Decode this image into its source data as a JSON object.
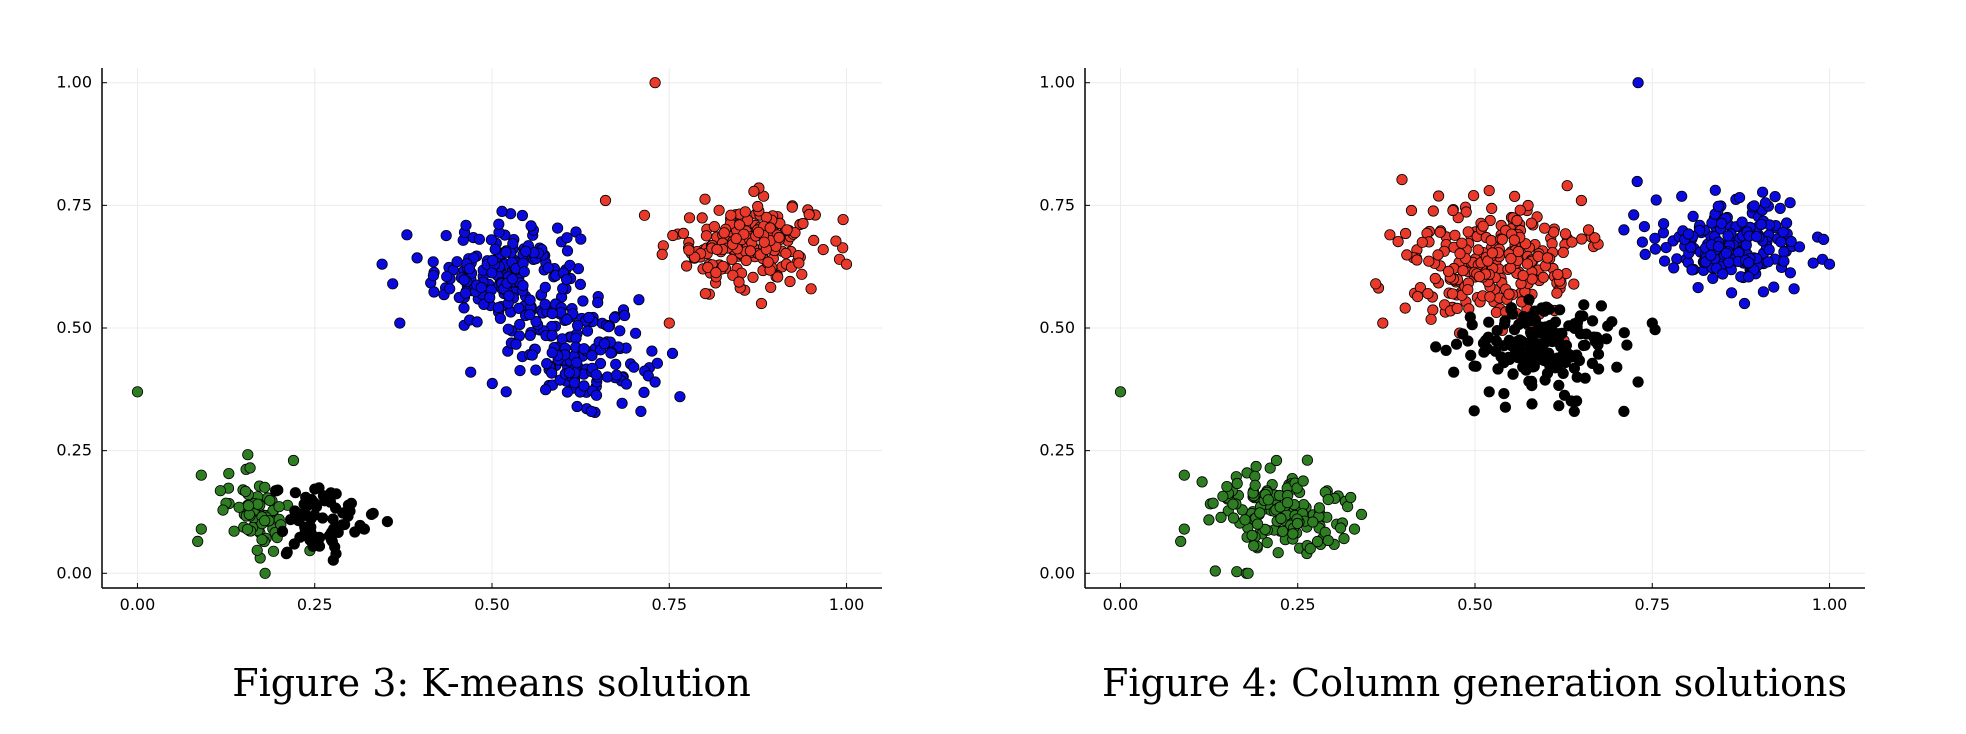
{
  "figures": [
    {
      "caption": "Figure 3: K-means solution"
    },
    {
      "caption": "Figure 4: Column generation solutions"
    }
  ],
  "colors": {
    "red": "#e8392a",
    "blue": "#0a0adf",
    "black": "#000000",
    "green": "#2f7d23"
  },
  "chart_data": [
    {
      "type": "scatter",
      "title": "",
      "xlabel": "",
      "ylabel": "",
      "xlim": [
        -0.05,
        1.05
      ],
      "ylim": [
        -0.03,
        1.03
      ],
      "xticks": [
        "0.00",
        "0.25",
        "0.50",
        "0.75",
        "1.00"
      ],
      "yticks": [
        "0.00",
        "0.25",
        "0.50",
        "0.75",
        "1.00"
      ],
      "grid": true,
      "legend": "none",
      "series": [
        {
          "color": "blue",
          "clusters": [
            {
              "center": [
                0.52,
                0.61
              ],
              "spread": [
                0.05,
                0.055
              ],
              "count": 200
            },
            {
              "center": [
                0.63,
                0.45
              ],
              "spread": [
                0.045,
                0.05
              ],
              "count": 150
            }
          ],
          "points": [
            [
              0.37,
              0.51
            ],
            [
              0.36,
              0.59
            ],
            [
              0.38,
              0.69
            ],
            [
              0.47,
              0.41
            ],
            [
              0.52,
              0.37
            ],
            [
              0.71,
              0.33
            ],
            [
              0.73,
              0.39
            ],
            [
              0.7,
              0.42
            ],
            [
              0.64,
              0.33
            ],
            [
              0.62,
              0.34
            ]
          ]
        },
        {
          "color": "red",
          "clusters": [
            {
              "center": [
                0.86,
                0.67
              ],
              "spread": [
                0.05,
                0.045
              ],
              "count": 190
            }
          ],
          "points": [
            [
              0.73,
              1.0
            ],
            [
              0.75,
              0.51
            ],
            [
              0.74,
              0.65
            ],
            [
              0.66,
              0.76
            ],
            [
              0.99,
              0.64
            ],
            [
              1.0,
              0.63
            ],
            [
              0.95,
              0.58
            ],
            [
              0.88,
              0.55
            ]
          ]
        },
        {
          "color": "green",
          "clusters": [
            {
              "center": [
                0.17,
                0.13
              ],
              "spread": [
                0.025,
                0.04
              ],
              "count": 70
            }
          ],
          "points": [
            [
              0.0,
              0.37
            ],
            [
              0.18,
              0.0
            ],
            [
              0.09,
              0.2
            ],
            [
              0.09,
              0.09
            ],
            [
              0.085,
              0.065
            ],
            [
              0.22,
              0.23
            ]
          ]
        },
        {
          "color": "black",
          "clusters": [
            {
              "center": [
                0.26,
                0.11
              ],
              "spread": [
                0.035,
                0.04
              ],
              "count": 70
            }
          ],
          "points": [
            [
              0.33,
              0.12
            ],
            [
              0.32,
              0.09
            ],
            [
              0.28,
              0.04
            ],
            [
              0.21,
              0.04
            ]
          ]
        }
      ]
    },
    {
      "type": "scatter",
      "title": "",
      "xlabel": "",
      "ylabel": "",
      "xlim": [
        -0.05,
        1.05
      ],
      "ylim": [
        -0.03,
        1.03
      ],
      "xticks": [
        "0.00",
        "0.25",
        "0.50",
        "0.75",
        "1.00"
      ],
      "yticks": [
        "0.00",
        "0.25",
        "0.50",
        "0.75",
        "1.00"
      ],
      "grid": true,
      "legend": "none",
      "series": [
        {
          "color": "red",
          "clusters": [
            {
              "center": [
                0.53,
                0.63
              ],
              "spread": [
                0.06,
                0.06
              ],
              "count": 260
            }
          ],
          "points": [
            [
              0.37,
              0.51
            ],
            [
              0.36,
              0.59
            ],
            [
              0.38,
              0.69
            ],
            [
              0.65,
              0.76
            ],
            [
              0.66,
              0.7
            ],
            [
              0.52,
              0.78
            ],
            [
              0.63,
              0.79
            ]
          ]
        },
        {
          "color": "black",
          "clusters": [
            {
              "center": [
                0.59,
                0.46
              ],
              "spread": [
                0.05,
                0.045
              ],
              "count": 170
            }
          ],
          "points": [
            [
              0.47,
              0.41
            ],
            [
              0.52,
              0.37
            ],
            [
              0.71,
              0.33
            ],
            [
              0.73,
              0.39
            ],
            [
              0.7,
              0.42
            ],
            [
              0.64,
              0.33
            ],
            [
              0.75,
              0.51
            ]
          ]
        },
        {
          "color": "blue",
          "clusters": [
            {
              "center": [
                0.86,
                0.67
              ],
              "spread": [
                0.05,
                0.045
              ],
              "count": 190
            }
          ],
          "points": [
            [
              0.73,
              1.0
            ],
            [
              0.74,
              0.65
            ],
            [
              0.71,
              0.7
            ],
            [
              0.99,
              0.64
            ],
            [
              1.0,
              0.63
            ],
            [
              0.95,
              0.58
            ],
            [
              0.88,
              0.55
            ]
          ]
        },
        {
          "color": "green",
          "clusters": [
            {
              "center": [
                0.22,
                0.12
              ],
              "spread": [
                0.05,
                0.045
              ],
              "count": 150
            }
          ],
          "points": [
            [
              0.0,
              0.37
            ],
            [
              0.18,
              0.0
            ],
            [
              0.09,
              0.2
            ],
            [
              0.09,
              0.09
            ],
            [
              0.085,
              0.065
            ],
            [
              0.22,
              0.23
            ],
            [
              0.34,
              0.12
            ],
            [
              0.33,
              0.09
            ]
          ]
        }
      ]
    }
  ]
}
